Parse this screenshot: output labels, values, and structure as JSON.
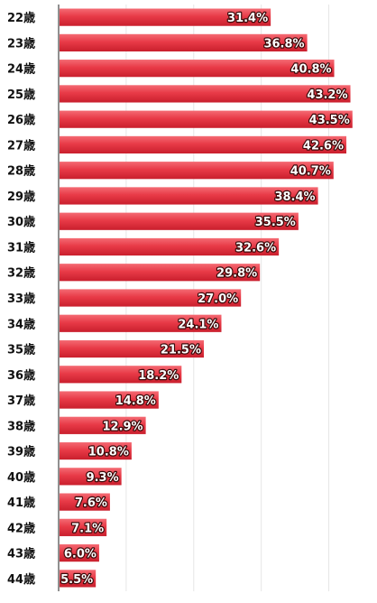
{
  "chart_data": {
    "type": "bar",
    "orientation": "horizontal",
    "categories": [
      "22歳",
      "23歳",
      "24歳",
      "25歳",
      "26歳",
      "27歳",
      "28歳",
      "29歳",
      "30歳",
      "31歳",
      "32歳",
      "33歳",
      "34歳",
      "35歳",
      "36歳",
      "37歳",
      "38歳",
      "39歳",
      "40歳",
      "41歳",
      "42歳",
      "43歳",
      "44歳"
    ],
    "values": [
      31.4,
      36.8,
      40.8,
      43.2,
      43.5,
      42.6,
      40.7,
      38.4,
      35.5,
      32.6,
      29.8,
      27.0,
      24.1,
      21.5,
      18.2,
      14.8,
      12.9,
      10.8,
      9.3,
      7.6,
      7.1,
      6.0,
      5.5
    ],
    "value_labels": [
      "31.4%",
      "36.8%",
      "40.8%",
      "43.2%",
      "43.5%",
      "42.6%",
      "40.7%",
      "38.4%",
      "35.5%",
      "32.6%",
      "29.8%",
      "27.0%",
      "24.1%",
      "21.5%",
      "18.2%",
      "14.8%",
      "12.9%",
      "10.8%",
      "9.3%",
      "7.6%",
      "7.1%",
      "6.0%",
      "5.5%"
    ],
    "xlim": [
      0,
      45
    ],
    "grid": true,
    "bar_color": "#e83a47",
    "title": "",
    "xlabel": "",
    "ylabel": ""
  }
}
